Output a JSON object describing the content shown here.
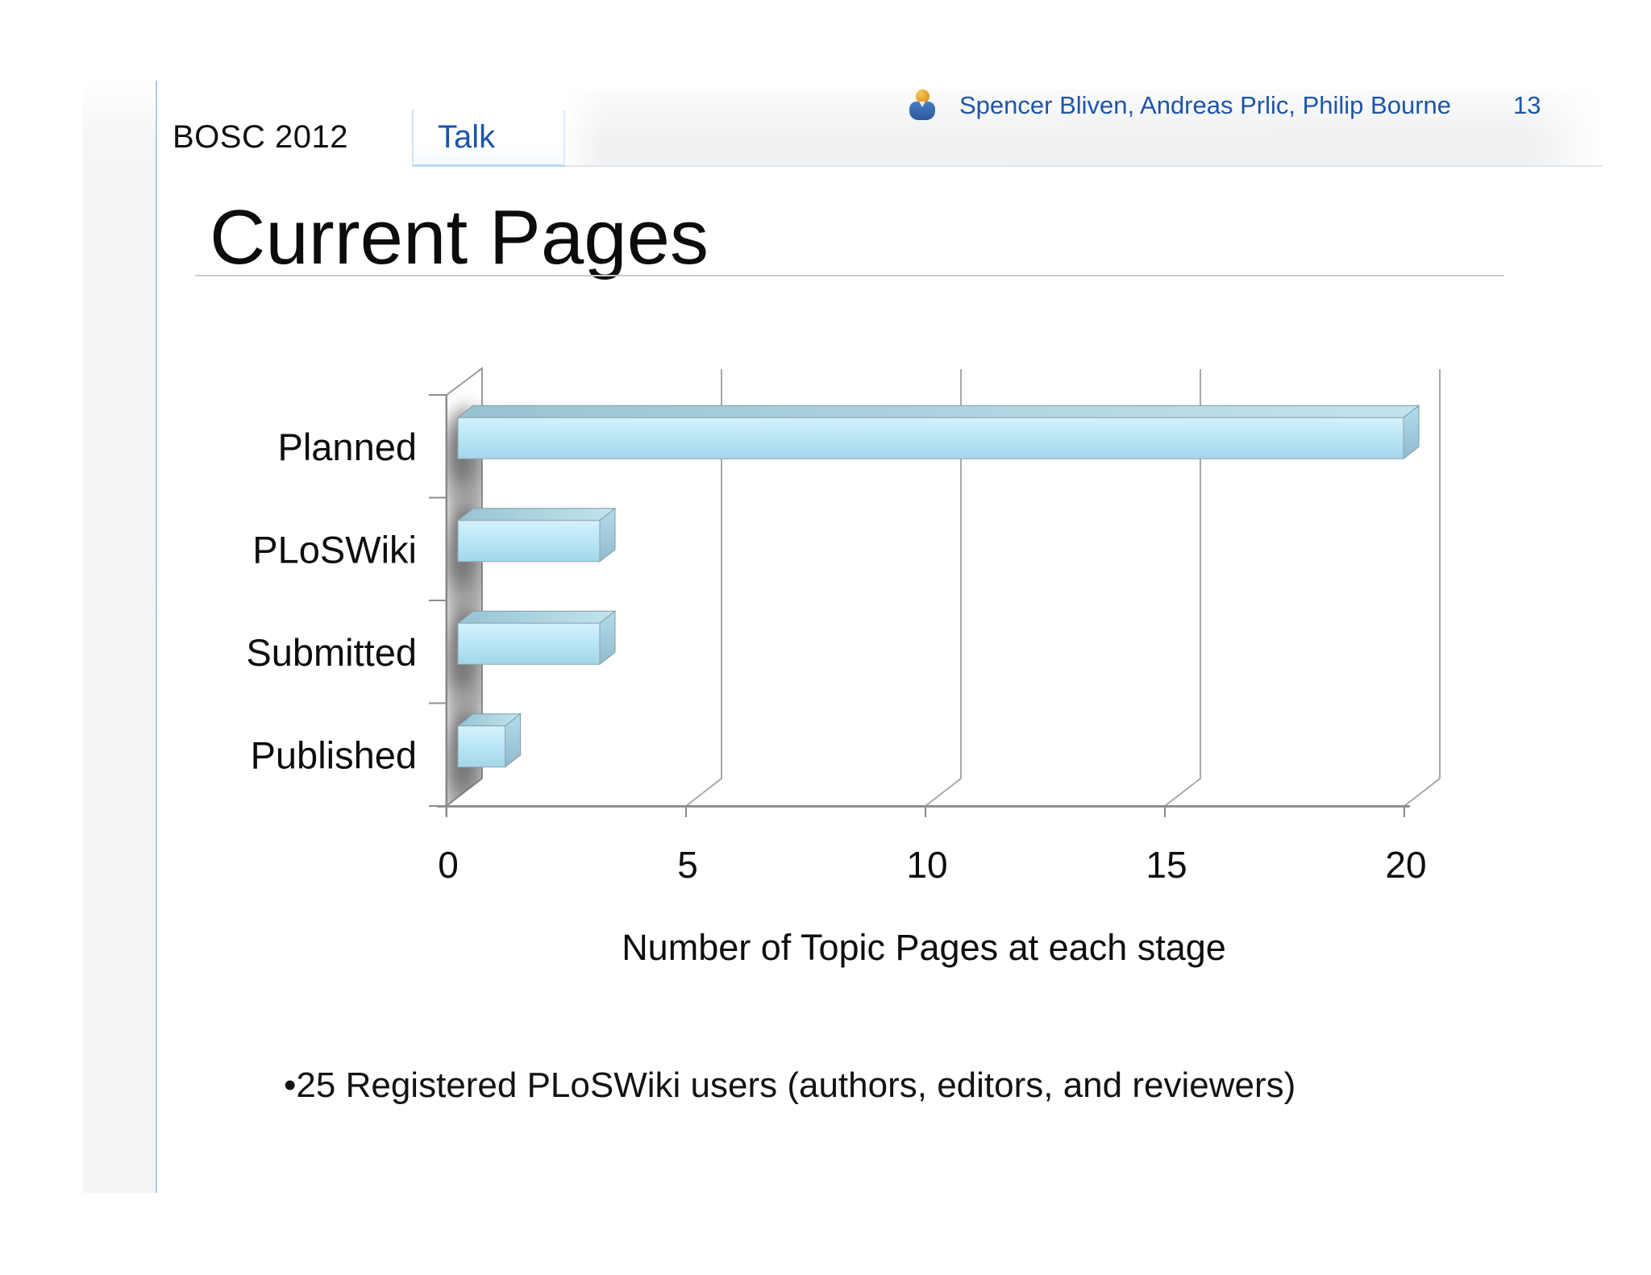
{
  "page": {
    "wiki_label": "BOSC 2012",
    "tab_label": "Talk",
    "authors": "Spencer Bliven, Andreas Prlic, Philip Bourne",
    "page_number": "13",
    "title": "Current Pages",
    "bullet_text": "•25 Registered PLoSWiki users (authors, editors, and reviewers)"
  },
  "icons": {
    "user": "user-icon"
  },
  "colors": {
    "link_blue": "#1e55a8",
    "tab_blue": "#1a55ae",
    "bar_fill": "#b9e6f5",
    "bar_top": "#9cc8d6",
    "bar_side": "#9fccdd",
    "sidebar_border": "#aecbe8"
  },
  "chart_data": {
    "type": "bar",
    "orientation": "horizontal",
    "style": "3d",
    "categories": [
      "Planned",
      "PLoSWiki",
      "Submitted",
      "Published"
    ],
    "values": [
      20,
      3,
      3,
      1
    ],
    "xlabel": "Number of Topic Pages at each stage",
    "ylabel": "",
    "xticks": [
      0,
      5,
      10,
      15,
      20
    ],
    "xlim": [
      0,
      21
    ],
    "grid": true,
    "legend": false
  }
}
